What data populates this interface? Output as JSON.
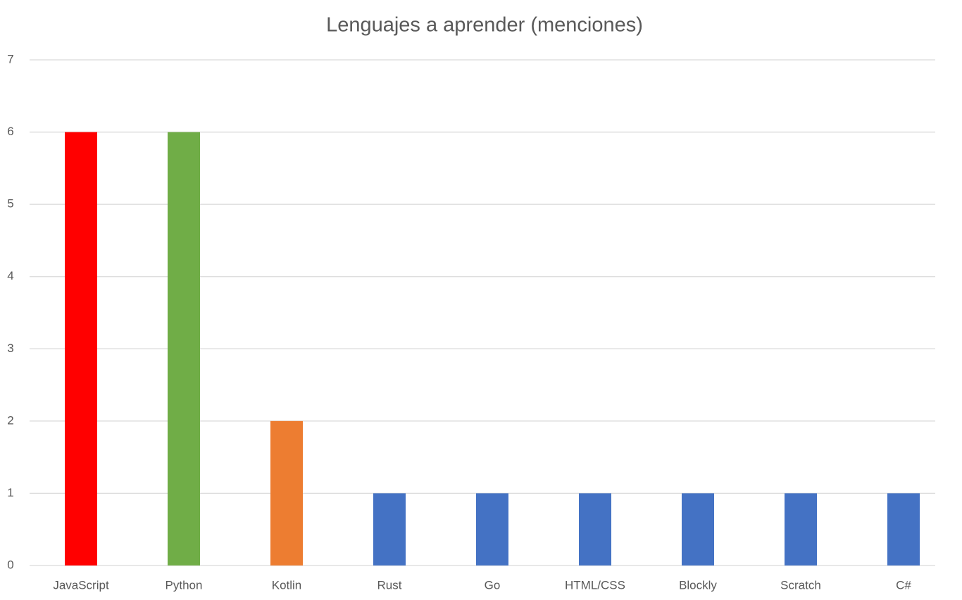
{
  "chart_data": {
    "type": "bar",
    "title": "Lenguajes a aprender (menciones)",
    "categories": [
      "JavaScript",
      "Python",
      "Kotlin",
      "Rust",
      "Go",
      "HTML/CSS",
      "Blockly",
      "Scratch",
      "C#"
    ],
    "values": [
      6,
      6,
      2,
      1,
      1,
      1,
      1,
      1,
      1
    ],
    "colors": [
      "#ff0000",
      "#70ad47",
      "#ed7d31",
      "#4472c4",
      "#4472c4",
      "#4472c4",
      "#4472c4",
      "#4472c4",
      "#4472c4"
    ],
    "ylim": [
      0,
      7
    ],
    "yticks": [
      0,
      1,
      2,
      3,
      4,
      5,
      6,
      7
    ],
    "grid": true
  }
}
